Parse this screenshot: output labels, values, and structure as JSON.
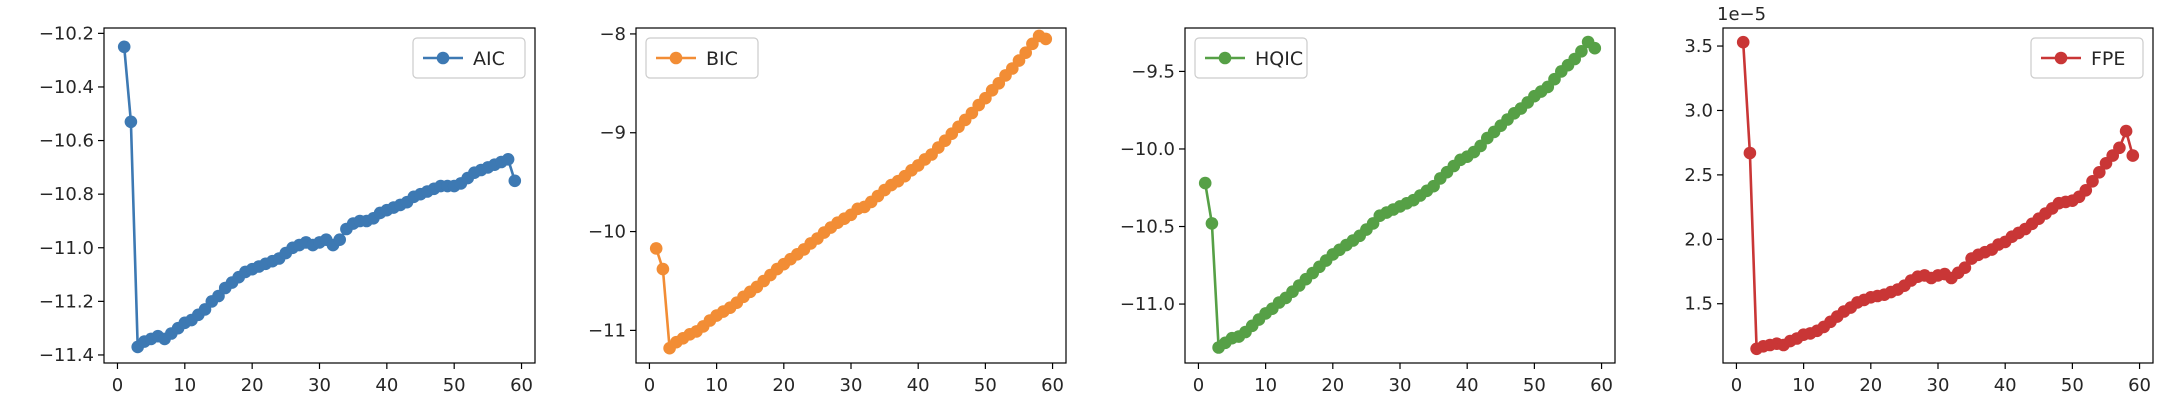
{
  "chart_data": [
    {
      "type": "line",
      "series": [
        {
          "name": "AIC",
          "color": "#3d79b3",
          "x": [
            1,
            2,
            3,
            4,
            5,
            6,
            7,
            8,
            9,
            10,
            11,
            12,
            13,
            14,
            15,
            16,
            17,
            18,
            19,
            20,
            21,
            22,
            23,
            24,
            25,
            26,
            27,
            28,
            29,
            30,
            31,
            32,
            33,
            34,
            35,
            36,
            37,
            38,
            39,
            40,
            41,
            42,
            43,
            44,
            45,
            46,
            47,
            48,
            49,
            50,
            51,
            52,
            53,
            54,
            55,
            56,
            57,
            58,
            59
          ],
          "y": [
            -10.25,
            -10.53,
            -11.37,
            -11.35,
            -11.34,
            -11.33,
            -11.34,
            -11.32,
            -11.3,
            -11.28,
            -11.27,
            -11.25,
            -11.23,
            -11.2,
            -11.18,
            -11.15,
            -11.13,
            -11.11,
            -11.09,
            -11.08,
            -11.07,
            -11.06,
            -11.05,
            -11.04,
            -11.02,
            -11.0,
            -10.99,
            -10.98,
            -10.99,
            -10.98,
            -10.97,
            -10.99,
            -10.97,
            -10.93,
            -10.91,
            -10.9,
            -10.9,
            -10.89,
            -10.87,
            -10.86,
            -10.85,
            -10.84,
            -10.83,
            -10.81,
            -10.8,
            -10.79,
            -10.78,
            -10.77,
            -10.77,
            -10.77,
            -10.76,
            -10.74,
            -10.72,
            -10.71,
            -10.7,
            -10.69,
            -10.68,
            -10.67,
            -10.75
          ]
        }
      ],
      "ylim": [
        -11.43,
        -10.18
      ],
      "xlim": [
        -2,
        62
      ],
      "yticks": [
        -11.4,
        -11.2,
        -11.0,
        -10.8,
        -10.6,
        -10.4,
        -10.2
      ],
      "ytick_labels": [
        "−11.4",
        "−11.2",
        "−11.0",
        "−10.8",
        "−10.6",
        "−10.4",
        "−10.2"
      ],
      "xticks": [
        0,
        10,
        20,
        30,
        40,
        50,
        60
      ],
      "xtick_labels": [
        "0",
        "10",
        "20",
        "30",
        "40",
        "50",
        "60"
      ],
      "offset_text": "",
      "legend_position": "top-right"
    },
    {
      "type": "line",
      "series": [
        {
          "name": "BIC",
          "color": "#f28d35",
          "x": [
            1,
            2,
            3,
            4,
            5,
            6,
            7,
            8,
            9,
            10,
            11,
            12,
            13,
            14,
            15,
            16,
            17,
            18,
            19,
            20,
            21,
            22,
            23,
            24,
            25,
            26,
            27,
            28,
            29,
            30,
            31,
            32,
            33,
            34,
            35,
            36,
            37,
            38,
            39,
            40,
            41,
            42,
            43,
            44,
            45,
            46,
            47,
            48,
            49,
            50,
            51,
            52,
            53,
            54,
            55,
            56,
            57,
            58,
            59
          ],
          "y": [
            -10.17,
            -10.38,
            -11.18,
            -11.12,
            -11.08,
            -11.04,
            -11.01,
            -10.96,
            -10.9,
            -10.85,
            -10.81,
            -10.77,
            -10.72,
            -10.66,
            -10.61,
            -10.56,
            -10.5,
            -10.44,
            -10.38,
            -10.33,
            -10.28,
            -10.23,
            -10.18,
            -10.12,
            -10.07,
            -10.01,
            -9.96,
            -9.91,
            -9.87,
            -9.83,
            -9.77,
            -9.75,
            -9.7,
            -9.64,
            -9.58,
            -9.53,
            -9.49,
            -9.44,
            -9.38,
            -9.33,
            -9.27,
            -9.22,
            -9.15,
            -9.08,
            -9.01,
            -8.94,
            -8.87,
            -8.8,
            -8.72,
            -8.65,
            -8.57,
            -8.5,
            -8.42,
            -8.35,
            -8.27,
            -8.19,
            -8.1,
            -8.02,
            -8.05
          ]
        }
      ],
      "ylim": [
        -11.33,
        -7.94
      ],
      "xlim": [
        -2,
        62
      ],
      "yticks": [
        -11,
        -10,
        -9,
        -8
      ],
      "ytick_labels": [
        "−11",
        "−10",
        "−9",
        "−8"
      ],
      "xticks": [
        0,
        10,
        20,
        30,
        40,
        50,
        60
      ],
      "xtick_labels": [
        "0",
        "10",
        "20",
        "30",
        "40",
        "50",
        "60"
      ],
      "offset_text": "",
      "legend_position": "top-left"
    },
    {
      "type": "line",
      "series": [
        {
          "name": "HQIC",
          "color": "#56a046",
          "x": [
            1,
            2,
            3,
            4,
            5,
            6,
            7,
            8,
            9,
            10,
            11,
            12,
            13,
            14,
            15,
            16,
            17,
            18,
            19,
            20,
            21,
            22,
            23,
            24,
            25,
            26,
            27,
            28,
            29,
            30,
            31,
            32,
            33,
            34,
            35,
            36,
            37,
            38,
            39,
            40,
            41,
            42,
            43,
            44,
            45,
            46,
            47,
            48,
            49,
            50,
            51,
            52,
            53,
            54,
            55,
            56,
            57,
            58,
            59
          ],
          "y": [
            -10.22,
            -10.48,
            -11.28,
            -11.25,
            -11.22,
            -11.21,
            -11.18,
            -11.14,
            -11.1,
            -11.06,
            -11.03,
            -10.99,
            -10.96,
            -10.92,
            -10.88,
            -10.84,
            -10.8,
            -10.76,
            -10.72,
            -10.68,
            -10.65,
            -10.62,
            -10.59,
            -10.56,
            -10.52,
            -10.48,
            -10.43,
            -10.41,
            -10.39,
            -10.37,
            -10.35,
            -10.33,
            -10.3,
            -10.27,
            -10.24,
            -10.19,
            -10.15,
            -10.11,
            -10.07,
            -10.05,
            -10.02,
            -9.98,
            -9.93,
            -9.89,
            -9.85,
            -9.81,
            -9.77,
            -9.74,
            -9.7,
            -9.66,
            -9.63,
            -9.6,
            -9.55,
            -9.5,
            -9.46,
            -9.42,
            -9.37,
            -9.31,
            -9.35
          ]
        }
      ],
      "ylim": [
        -11.38,
        -9.22
      ],
      "xlim": [
        -2,
        62
      ],
      "yticks": [
        -11.0,
        -10.5,
        -10.0,
        -9.5
      ],
      "ytick_labels": [
        "−11.0",
        "−10.5",
        "−10.0",
        "−9.5"
      ],
      "xticks": [
        0,
        10,
        20,
        30,
        40,
        50,
        60
      ],
      "xtick_labels": [
        "0",
        "10",
        "20",
        "30",
        "40",
        "50",
        "60"
      ],
      "offset_text": "",
      "legend_position": "top-left"
    },
    {
      "type": "line",
      "series": [
        {
          "name": "FPE",
          "color": "#c93636",
          "x": [
            1,
            2,
            3,
            4,
            5,
            6,
            7,
            8,
            9,
            10,
            11,
            12,
            13,
            14,
            15,
            16,
            17,
            18,
            19,
            20,
            21,
            22,
            23,
            24,
            25,
            26,
            27,
            28,
            29,
            30,
            31,
            32,
            33,
            34,
            35,
            36,
            37,
            38,
            39,
            40,
            41,
            42,
            43,
            44,
            45,
            46,
            47,
            48,
            49,
            50,
            51,
            52,
            53,
            54,
            55,
            56,
            57,
            58,
            59
          ],
          "y": [
            3.53e-05,
            2.67e-05,
            1.15e-05,
            1.17e-05,
            1.18e-05,
            1.19e-05,
            1.18e-05,
            1.21e-05,
            1.23e-05,
            1.26e-05,
            1.27e-05,
            1.29e-05,
            1.32e-05,
            1.36e-05,
            1.4e-05,
            1.44e-05,
            1.47e-05,
            1.51e-05,
            1.53e-05,
            1.55e-05,
            1.56e-05,
            1.57e-05,
            1.59e-05,
            1.61e-05,
            1.64e-05,
            1.68e-05,
            1.71e-05,
            1.72e-05,
            1.7e-05,
            1.72e-05,
            1.73e-05,
            1.7e-05,
            1.74e-05,
            1.78e-05,
            1.85e-05,
            1.88e-05,
            1.9e-05,
            1.92e-05,
            1.96e-05,
            1.98e-05,
            2.02e-05,
            2.05e-05,
            2.08e-05,
            2.12e-05,
            2.16e-05,
            2.2e-05,
            2.24e-05,
            2.28e-05,
            2.29e-05,
            2.3e-05,
            2.33e-05,
            2.38e-05,
            2.45e-05,
            2.52e-05,
            2.59e-05,
            2.65e-05,
            2.71e-05,
            2.84e-05,
            2.65e-05
          ]
        }
      ],
      "ylim": [
        1.04e-05,
        3.64e-05
      ],
      "xlim": [
        -2,
        62
      ],
      "yticks": [
        1.5e-05,
        2e-05,
        2.5e-05,
        3e-05,
        3.5e-05
      ],
      "ytick_labels": [
        "1.5",
        "2.0",
        "2.5",
        "3.0",
        "3.5"
      ],
      "xticks": [
        0,
        10,
        20,
        30,
        40,
        50,
        60
      ],
      "xtick_labels": [
        "0",
        "10",
        "20",
        "30",
        "40",
        "50",
        "60"
      ],
      "offset_text": "1e−5",
      "legend_position": "top-right"
    }
  ]
}
